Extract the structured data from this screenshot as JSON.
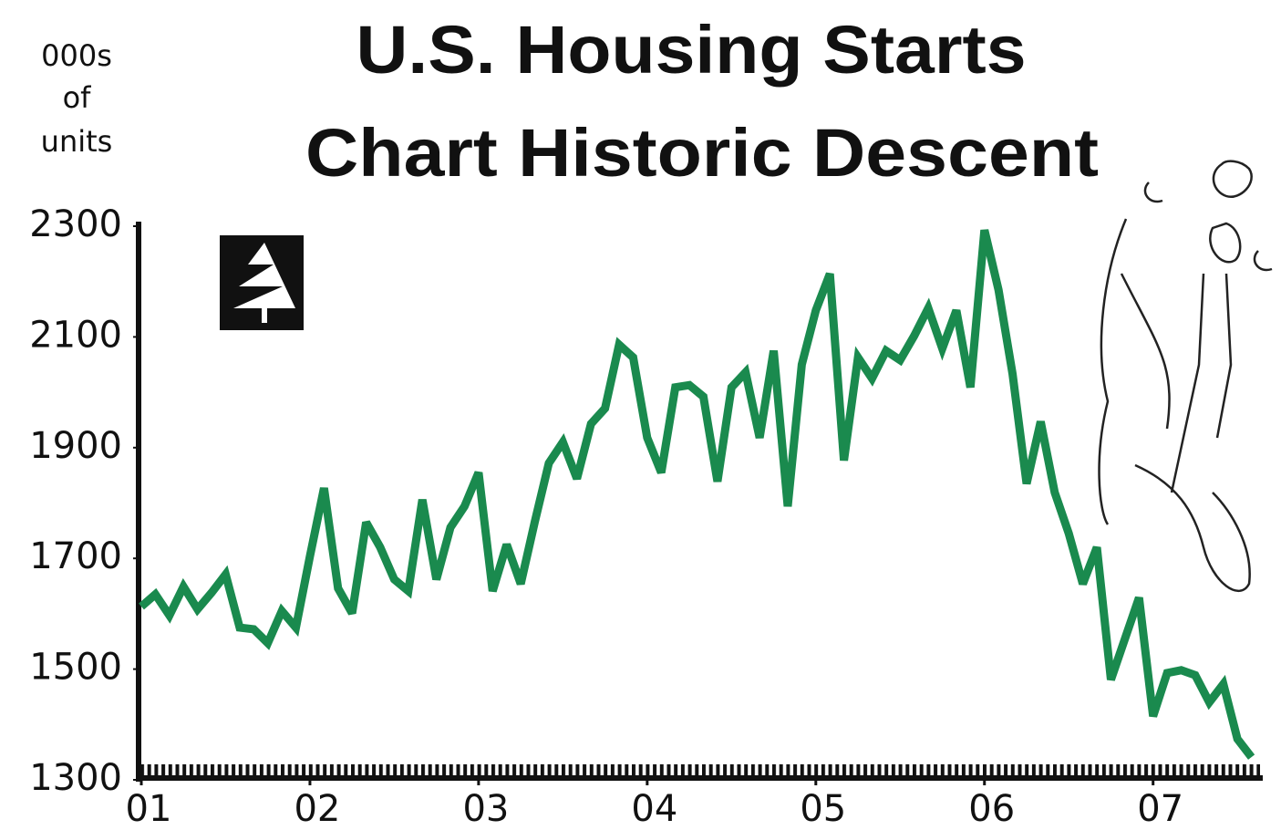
{
  "chart_data": {
    "type": "line",
    "title": [
      "U.S. Housing Starts",
      "Chart Historic Descent"
    ],
    "y_label": [
      "000s",
      "of",
      "units"
    ],
    "x": [
      0,
      1,
      2,
      3,
      4,
      5,
      6,
      7,
      8,
      9,
      10,
      11,
      12,
      13,
      14,
      15,
      16,
      17,
      18,
      19,
      20,
      21,
      22,
      23,
      24,
      25,
      26,
      27,
      28,
      29,
      30,
      31,
      32,
      33,
      34,
      35,
      36,
      37,
      38,
      39,
      40,
      41,
      42,
      43,
      44,
      45,
      46,
      47,
      48,
      49,
      50,
      51,
      52,
      53,
      54,
      55,
      56,
      57,
      58,
      59,
      60,
      61,
      62,
      63,
      64,
      65,
      66,
      67,
      68,
      69,
      70,
      71,
      72,
      73,
      74,
      75,
      76,
      77,
      78,
      79
    ],
    "series": [
      {
        "color": "#1a8a4e",
        "values": [
          1613,
          1635,
          1597,
          1649,
          1608,
          1638,
          1671,
          1575,
          1572,
          1547,
          1605,
          1575,
          1704,
          1827,
          1646,
          1601,
          1765,
          1720,
          1662,
          1641,
          1806,
          1662,
          1756,
          1794,
          1855,
          1641,
          1725,
          1654,
          1766,
          1872,
          1910,
          1844,
          1943,
          1971,
          2086,
          2063,
          1918,
          1855,
          2009,
          2013,
          1992,
          1839,
          2009,
          2036,
          1918,
          2075,
          1794,
          2050,
          2148,
          2214,
          1877,
          2063,
          2025,
          2075,
          2058,
          2102,
          2152,
          2079,
          2148,
          2009,
          2293,
          2185,
          2033,
          1835,
          1947,
          1819,
          1745,
          1654,
          1720,
          1481,
          1555,
          1629,
          1415,
          1493,
          1498,
          1489,
          1440,
          1473,
          1374,
          1341
        ]
      }
    ],
    "xlim": [
      0,
      80
    ],
    "xticks": [
      {
        "value": 0,
        "label": "01"
      },
      {
        "value": 12,
        "label": "02"
      },
      {
        "value": 24,
        "label": "03"
      },
      {
        "value": 36,
        "label": "04"
      },
      {
        "value": 48,
        "label": "05"
      },
      {
        "value": 60,
        "label": "06"
      },
      {
        "value": 72,
        "label": "07"
      }
    ],
    "ylim": [
      1300,
      2300
    ],
    "yticks": [
      1300,
      1500,
      1700,
      1900,
      2100,
      2300
    ],
    "grid": false
  }
}
